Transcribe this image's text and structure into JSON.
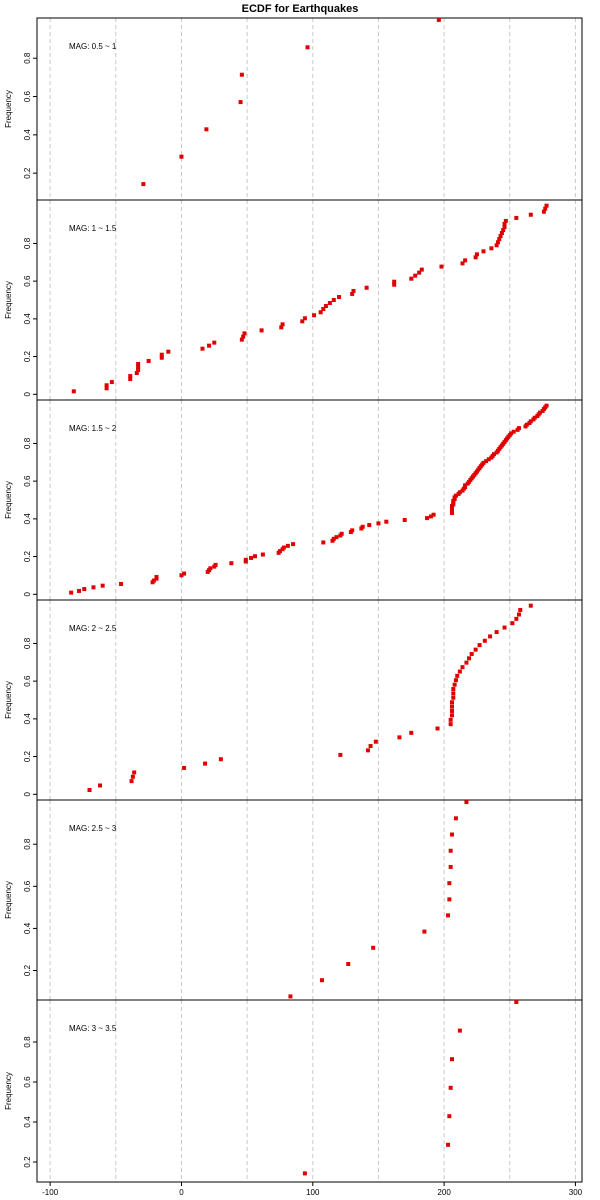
{
  "chart_data": {
    "type": "scatter",
    "title": "ECDF for Earthquakes",
    "xlabel": "",
    "ylabel": "Frequency",
    "xlim": [
      -110,
      305
    ],
    "grid": {
      "vertical_dashed": true,
      "x_positions": [
        -100,
        -50,
        0,
        50,
        100,
        150,
        200,
        250,
        300
      ]
    },
    "x_ticks": [
      -100,
      0,
      100,
      200,
      300
    ],
    "y_ticks": [
      0,
      0.2,
      0.4,
      0.6,
      0.8
    ],
    "colors": {
      "points": "#e00000",
      "grid": "#c8c8c8",
      "frame": "#000000"
    },
    "panels": [
      {
        "label": "MAG: 0.5 ~ 1",
        "ylim": [
          0.06,
          1.01
        ],
        "y_ticks": [
          0.2,
          0.4,
          0.6,
          0.8
        ],
        "x": [
          -29,
          0,
          19,
          45,
          46,
          96,
          196
        ],
        "y": [
          0.143,
          0.286,
          0.429,
          0.571,
          0.714,
          0.857,
          1.0
        ]
      },
      {
        "label": "MAG: 1 ~ 1.5",
        "ylim": [
          -0.03,
          1.03
        ],
        "y_ticks": [
          0,
          0.2,
          0.4,
          0.6,
          0.8
        ],
        "x": [
          -82,
          -57,
          -57,
          -53,
          -39,
          -39,
          -34,
          -33,
          -33,
          -33,
          -25,
          -15,
          -15,
          -10,
          16,
          21,
          25,
          46,
          47,
          48,
          61,
          76,
          77,
          92,
          94,
          101,
          106,
          108,
          110,
          113,
          116,
          120,
          130,
          131,
          141,
          162,
          162,
          175,
          178,
          181,
          183,
          198,
          214,
          216,
          224,
          225,
          230,
          236,
          240,
          241,
          242,
          243,
          244,
          245,
          246,
          246,
          247,
          255,
          266,
          276,
          277,
          278
        ],
        "y": [
          0.016,
          0.032,
          0.048,
          0.065,
          0.081,
          0.097,
          0.113,
          0.129,
          0.145,
          0.161,
          0.177,
          0.194,
          0.21,
          0.226,
          0.242,
          0.258,
          0.274,
          0.29,
          0.306,
          0.323,
          0.339,
          0.355,
          0.371,
          0.387,
          0.403,
          0.419,
          0.435,
          0.452,
          0.468,
          0.484,
          0.5,
          0.516,
          0.532,
          0.548,
          0.565,
          0.581,
          0.597,
          0.613,
          0.629,
          0.645,
          0.661,
          0.677,
          0.694,
          0.71,
          0.726,
          0.742,
          0.758,
          0.774,
          0.79,
          0.806,
          0.823,
          0.839,
          0.855,
          0.871,
          0.887,
          0.903,
          0.919,
          0.935,
          0.952,
          0.968,
          0.984,
          1.0
        ]
      },
      {
        "label": "MAG: 1.5 ~ 2",
        "ylim": [
          -0.03,
          1.03
        ],
        "y_ticks": [
          0,
          0.2,
          0.4,
          0.6,
          0.8
        ],
        "x": [
          -84,
          -78,
          -74,
          -67,
          -60,
          -46,
          -22,
          -21,
          -19,
          -19,
          0,
          2,
          20,
          21,
          22,
          25,
          26,
          38,
          49,
          49,
          53,
          56,
          62,
          74,
          75,
          77,
          78,
          81,
          85,
          108,
          115,
          116,
          118,
          121,
          122,
          129,
          130,
          137,
          138,
          143,
          150,
          156,
          170,
          187,
          190,
          192,
          206,
          206,
          206,
          206,
          206,
          207,
          207,
          207,
          208,
          208,
          209,
          211,
          212,
          214,
          215,
          216,
          216,
          218,
          219,
          220,
          221,
          222,
          223,
          224,
          225,
          226,
          227,
          228,
          229,
          230,
          232,
          234,
          236,
          237,
          238,
          240,
          241,
          242,
          243,
          244,
          245,
          246,
          247,
          248,
          249,
          250,
          251,
          253,
          256,
          257,
          262,
          263,
          265,
          266,
          268,
          269,
          271,
          272,
          273,
          275,
          276,
          277,
          278
        ],
        "y": [
          0.009,
          0.018,
          0.028,
          0.037,
          0.046,
          0.055,
          0.064,
          0.073,
          0.083,
          0.092,
          0.101,
          0.11,
          0.119,
          0.128,
          0.138,
          0.147,
          0.156,
          0.165,
          0.174,
          0.183,
          0.193,
          0.202,
          0.211,
          0.22,
          0.229,
          0.239,
          0.248,
          0.257,
          0.266,
          0.275,
          0.284,
          0.294,
          0.303,
          0.312,
          0.321,
          0.33,
          0.339,
          0.349,
          0.358,
          0.367,
          0.376,
          0.385,
          0.394,
          0.404,
          0.413,
          0.422,
          0.431,
          0.44,
          0.45,
          0.459,
          0.468,
          0.477,
          0.486,
          0.495,
          0.505,
          0.514,
          0.523,
          0.532,
          0.541,
          0.55,
          0.56,
          0.569,
          0.578,
          0.587,
          0.596,
          0.606,
          0.615,
          0.624,
          0.633,
          0.642,
          0.651,
          0.661,
          0.67,
          0.679,
          0.688,
          0.697,
          0.706,
          0.716,
          0.725,
          0.734,
          0.743,
          0.752,
          0.761,
          0.771,
          0.78,
          0.789,
          0.798,
          0.807,
          0.817,
          0.826,
          0.835,
          0.844,
          0.853,
          0.862,
          0.872,
          0.881,
          0.89,
          0.899,
          0.908,
          0.917,
          0.927,
          0.936,
          0.945,
          0.954,
          0.963,
          0.972,
          0.982,
          0.991,
          1.0
        ]
      },
      {
        "label": "MAG: 2 ~ 2.5",
        "ylim": [
          -0.03,
          1.03
        ],
        "y_ticks": [
          0,
          0.2,
          0.4,
          0.6,
          0.8
        ],
        "x": [
          -70,
          -62,
          -38,
          -37,
          -36,
          2,
          18,
          30,
          121,
          142,
          144,
          148,
          166,
          175,
          195,
          205,
          205,
          206,
          206,
          206,
          206,
          207,
          207,
          207,
          208,
          209,
          210,
          212,
          214,
          217,
          219,
          221,
          224,
          227,
          231,
          235,
          240,
          246,
          252,
          255,
          257,
          258,
          266
        ],
        "y": [
          0.023,
          0.047,
          0.07,
          0.093,
          0.116,
          0.14,
          0.163,
          0.186,
          0.209,
          0.233,
          0.256,
          0.279,
          0.302,
          0.326,
          0.349,
          0.372,
          0.395,
          0.419,
          0.442,
          0.465,
          0.488,
          0.512,
          0.535,
          0.558,
          0.581,
          0.605,
          0.628,
          0.651,
          0.674,
          0.698,
          0.721,
          0.744,
          0.767,
          0.791,
          0.814,
          0.837,
          0.86,
          0.884,
          0.907,
          0.93,
          0.953,
          0.977,
          1.0
        ]
      },
      {
        "label": "MAG: 2.5 ~ 3",
        "ylim": [
          0.06,
          1.01
        ],
        "y_ticks": [
          0.2,
          0.4,
          0.6,
          0.8
        ],
        "x": [
          83,
          107,
          127,
          146,
          185,
          203,
          204,
          204,
          205,
          205,
          206,
          209,
          217
        ],
        "y": [
          0.077,
          0.154,
          0.231,
          0.308,
          0.385,
          0.462,
          0.538,
          0.615,
          0.692,
          0.769,
          0.846,
          0.923,
          1.0
        ]
      },
      {
        "label": "MAG: 3 ~ 3.5",
        "ylim": [
          0.1,
          1.01
        ],
        "y_ticks": [
          0.2,
          0.4,
          0.6,
          0.8
        ],
        "x": [
          94,
          203,
          204,
          205,
          206,
          212,
          255
        ],
        "y": [
          0.143,
          0.286,
          0.429,
          0.571,
          0.714,
          0.857,
          1.0
        ]
      }
    ]
  }
}
